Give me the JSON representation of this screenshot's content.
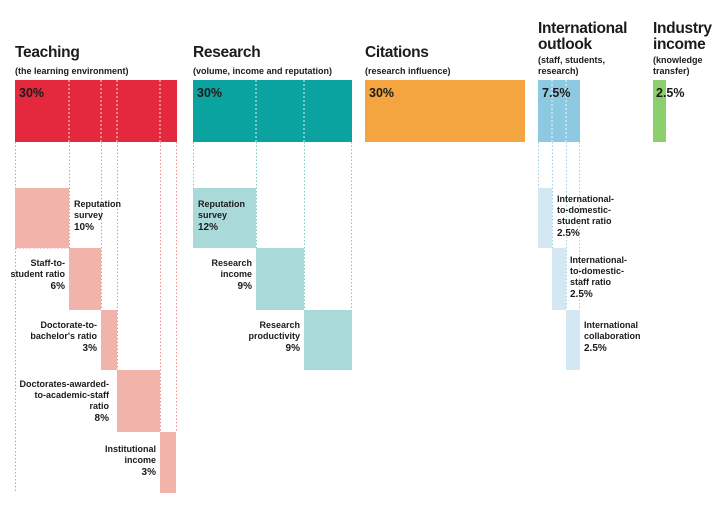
{
  "chart_data": {
    "type": "treemap",
    "pillars": [
      {
        "name": "Teaching",
        "description": "(the learning environment)",
        "weight": "30%",
        "value": 30,
        "color": "#e4283e",
        "components": [
          {
            "label": "Reputation survey",
            "weight": "10%",
            "value": 10
          },
          {
            "label": "Staff-to-student ratio",
            "weight": "6%",
            "value": 6
          },
          {
            "label": "Doctorate-to-bachelor's ratio",
            "weight": "3%",
            "value": 3
          },
          {
            "label": "Doctorates-awarded-to-academic-staff ratio",
            "weight": "8%",
            "value": 8
          },
          {
            "label": "Institutional income",
            "weight": "3%",
            "value": 3
          }
        ],
        "component_color": "#f2b3aa"
      },
      {
        "name": "Research",
        "description": "(volume, income and reputation)",
        "weight": "30%",
        "value": 30,
        "color": "#0aa3a0",
        "components": [
          {
            "label": "Reputation survey",
            "weight": "12%",
            "value": 12
          },
          {
            "label": "Research income",
            "weight": "9%",
            "value": 9
          },
          {
            "label": "Research productivity",
            "weight": "9%",
            "value": 9
          }
        ],
        "component_color": "#a9dad9"
      },
      {
        "name": "Citations",
        "description": "(research influence)",
        "weight": "30%",
        "value": 30,
        "color": "#f4a540",
        "components": []
      },
      {
        "name": "International outlook",
        "description": "(staff, students, research)",
        "weight": "7.5%",
        "value": 7.5,
        "color": "#8ec9e2",
        "components": [
          {
            "label": "International-to-domestic-student ratio",
            "weight": "2.5%",
            "value": 2.5
          },
          {
            "label": "International-to-domestic-staff ratio",
            "weight": "2.5%",
            "value": 2.5
          },
          {
            "label": "International collaboration",
            "weight": "2.5%",
            "value": 2.5
          }
        ],
        "component_color": "#d3e8f2"
      },
      {
        "name": "Industry income",
        "description": "(knowledge transfer)",
        "weight": "2.5%",
        "value": 2.5,
        "color": "#8ccf6d",
        "components": []
      }
    ]
  },
  "labels": {
    "teaching_head": "Teaching",
    "teaching_sub": "(the learning environment)",
    "teaching_pct": "30%",
    "research_head": "Research",
    "research_sub": "(volume, income and reputation)",
    "research_pct": "30%",
    "citations_head": "Citations",
    "citations_sub": "(research influence)",
    "citations_pct": "30%",
    "intl_head_1": "International",
    "intl_head_2": "outlook",
    "intl_sub_1": "(staff, students,",
    "intl_sub_2": "research)",
    "intl_pct": "7.5%",
    "industry_head_1": "Industry",
    "industry_head_2": "income",
    "industry_sub_1": "(knowledge",
    "industry_sub_2": "transfer)",
    "industry_pct": "2.5%",
    "t1_a": "Reputation",
    "t1_b": "survey",
    "t1_p": "10%",
    "t2_a": "Staff-to-",
    "t2_b": "student ratio",
    "t2_p": "6%",
    "t3_a": "Doctorate-to-",
    "t3_b": "bachelor's ratio",
    "t3_p": "3%",
    "t4_a": "Doctorates-awarded-",
    "t4_b": "to-academic-staff",
    "t4_c": "ratio",
    "t4_p": "8%",
    "t5_a": "Institutional",
    "t5_b": "income",
    "t5_p": "3%",
    "r1_a": "Reputation",
    "r1_b": "survey",
    "r1_p": "12%",
    "r2_a": "Research",
    "r2_b": "income",
    "r2_p": "9%",
    "r3_a": "Research",
    "r3_b": "productivity",
    "r3_p": "9%",
    "i1_a": "International-",
    "i1_b": "to-domestic-",
    "i1_c": "student ratio",
    "i1_p": "2.5%",
    "i2_a": "International-",
    "i2_b": "to-domestic-",
    "i2_c": "staff ratio",
    "i2_p": "2.5%",
    "i3_a": "International",
    "i3_b": "collaboration",
    "i3_p": "2.5%"
  }
}
